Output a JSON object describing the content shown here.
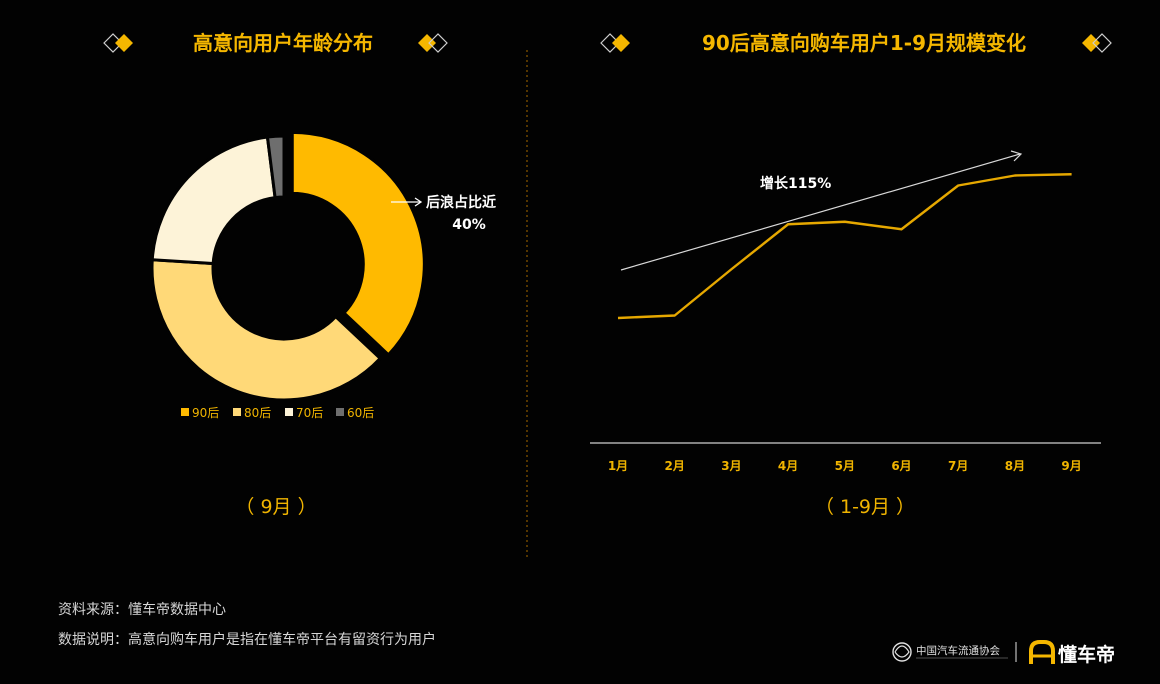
{
  "left_chart": {
    "title": "高意向用户年龄分布",
    "period": "（ 9月 ）",
    "annotation_line1": "后浪占比近",
    "annotation_line2": "40%"
  },
  "right_chart": {
    "title": "90后高意向购车用户1-9月规模变化",
    "period": "（ 1-9月 ）",
    "growth_label": "增长115%"
  },
  "footer": {
    "source": "资料来源：懂车帝数据中心",
    "note": "数据说明：高意向购车用户是指在懂车帝平台有留资行为用户",
    "partner_logo_text": "中国汽车流通协会",
    "brand_name": "懂车帝"
  },
  "colors": {
    "accent": "#f5b700",
    "s90": "#ffba00",
    "s80": "#ffd978",
    "s70": "#fdf3d8",
    "s60": "#6e6e6e",
    "line": "#e6a800"
  },
  "chart_data": [
    {
      "type": "pie",
      "variant": "donut",
      "title": "高意向用户年龄分布",
      "categories": [
        "90后",
        "80后",
        "70后",
        "60后"
      ],
      "values": [
        37,
        39,
        22,
        2
      ],
      "legend_position": "bottom",
      "exploded": "90后"
    },
    {
      "type": "line",
      "title": "90后高意向购车用户1-9月规模变化",
      "x": [
        "1月",
        "2月",
        "3月",
        "4月",
        "5月",
        "6月",
        "7月",
        "8月",
        "9月"
      ],
      "series": [
        {
          "values": [
            100,
            102,
            139,
            175,
            177,
            171,
            206,
            214,
            215
          ]
        }
      ],
      "ylim": [
        0,
        240
      ],
      "grid": false,
      "annotation": "增长115%"
    }
  ]
}
